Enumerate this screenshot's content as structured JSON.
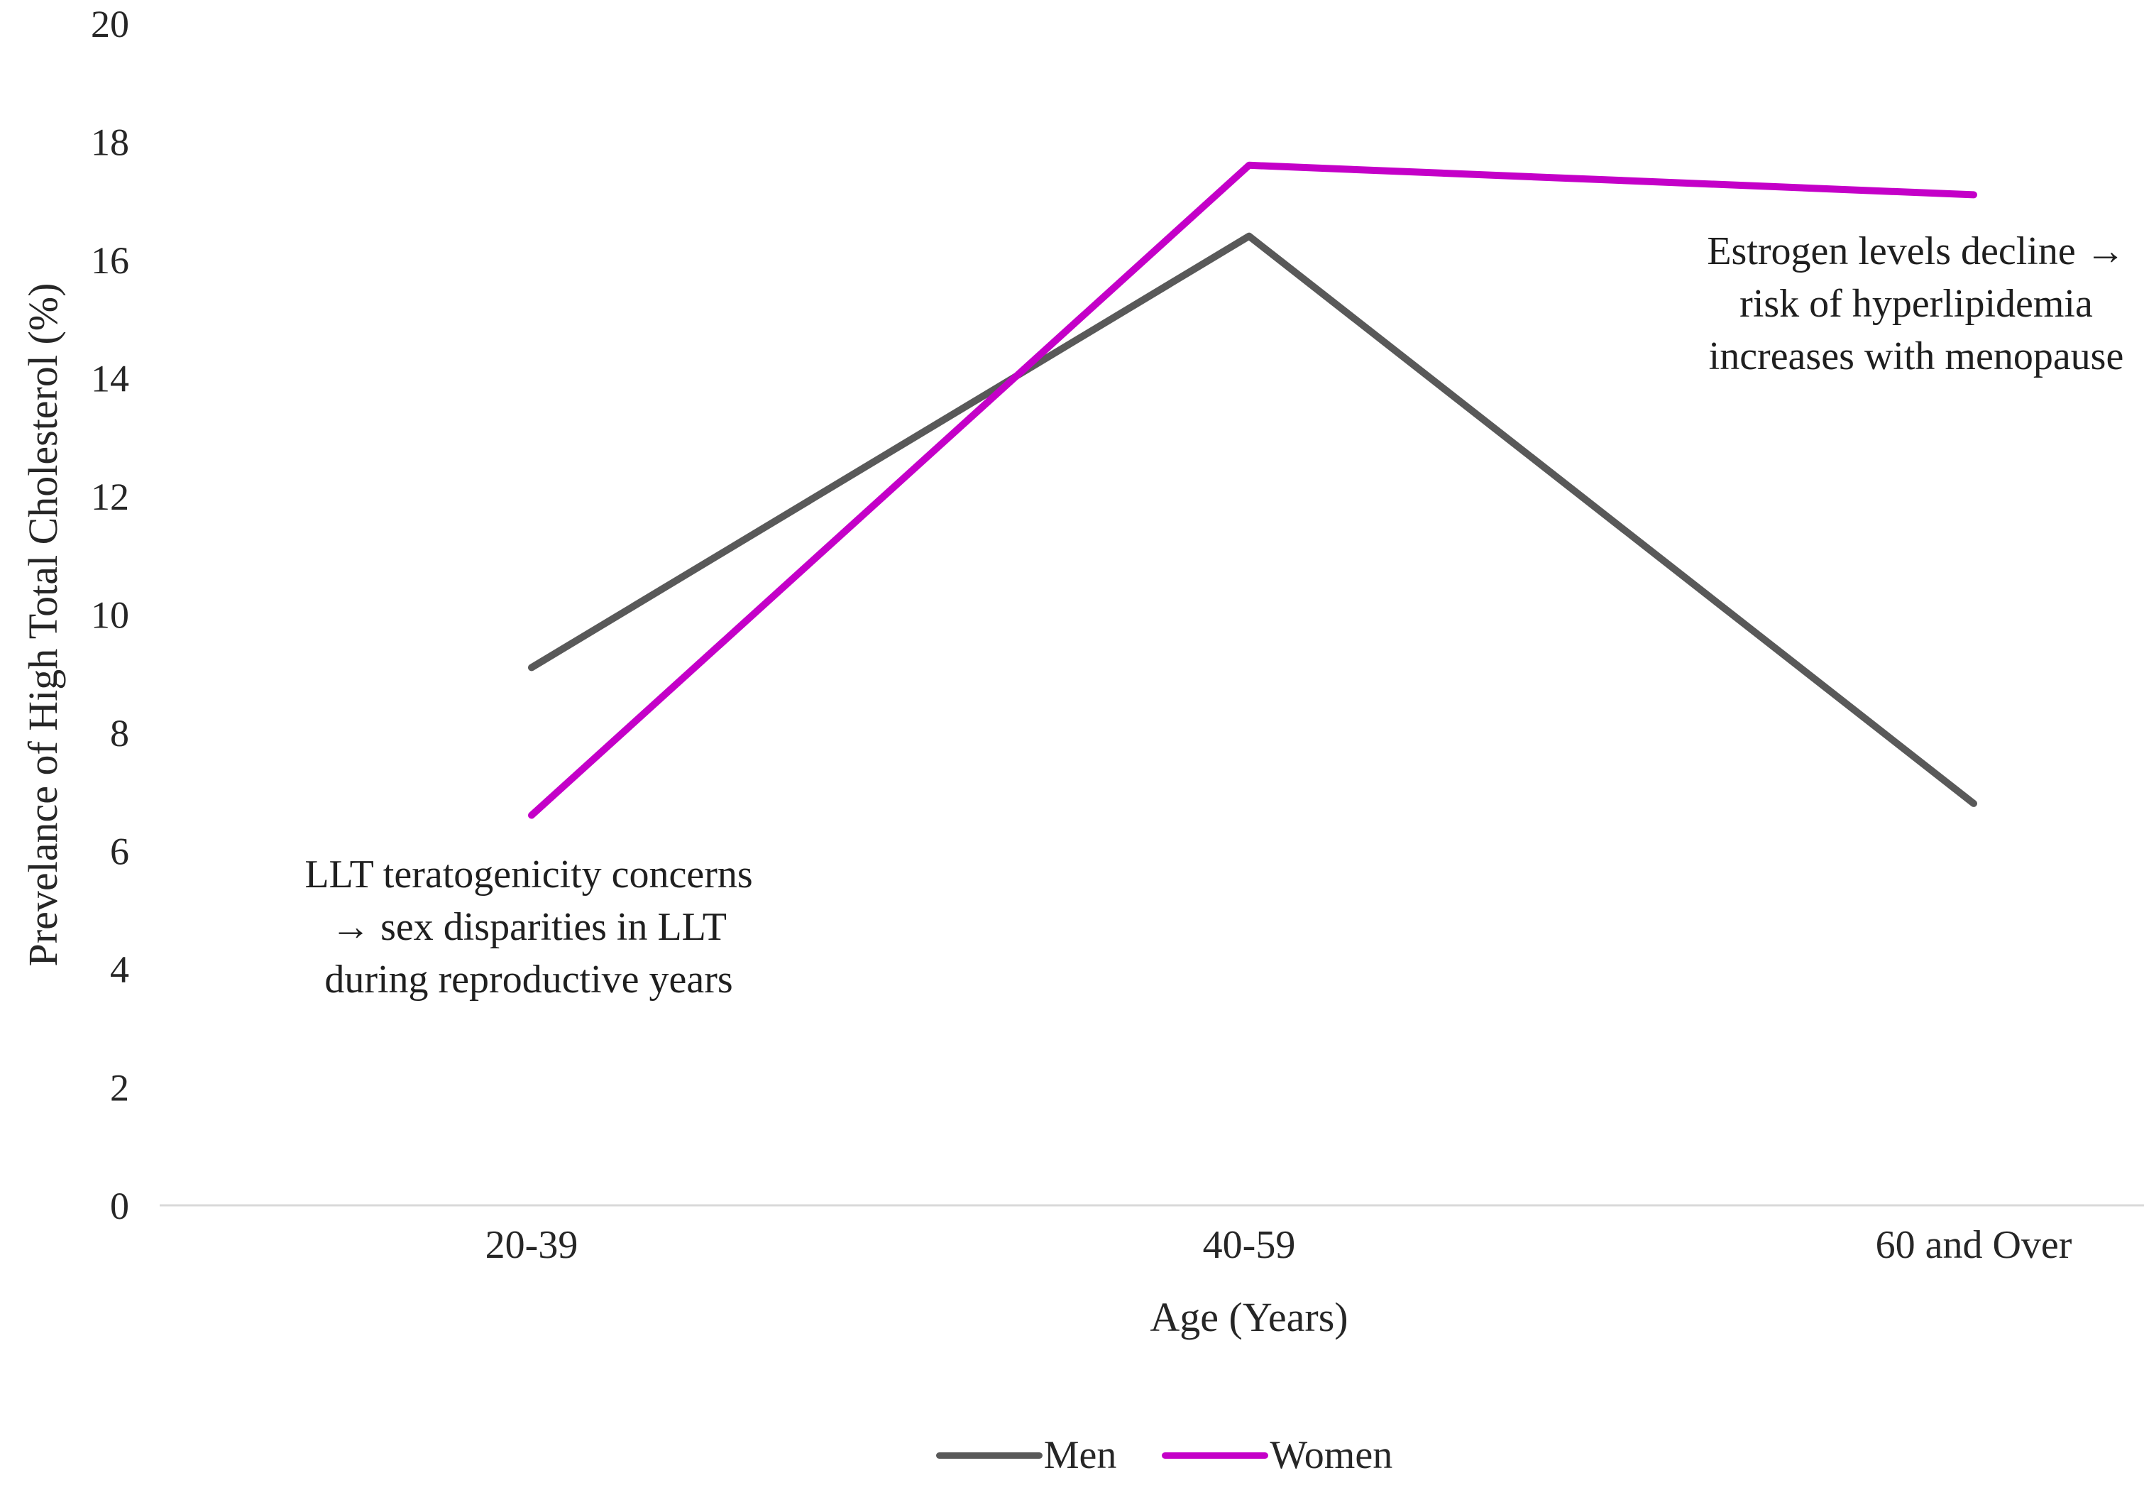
{
  "chart_data": {
    "type": "line",
    "categories": [
      "20-39",
      "40-59",
      "60 and Over"
    ],
    "series": [
      {
        "name": "Men",
        "color": "#595959",
        "values": [
          9.1,
          16.4,
          6.8
        ]
      },
      {
        "name": "Women",
        "color": "#C400C8",
        "values": [
          6.6,
          17.6,
          17.1
        ]
      }
    ],
    "title": "",
    "xlabel": "Age (Years)",
    "ylabel": "Prevelance of High Total Cholesterol (%)",
    "ylim": [
      0,
      20
    ],
    "y_ticks": [
      0,
      2,
      4,
      6,
      8,
      10,
      12,
      14,
      16,
      18,
      20
    ],
    "grid": "off",
    "legend_position": "bottom",
    "axis_line_color": "#D9D9D9",
    "tick_text_color": "#262626",
    "annotations": [
      {
        "text": "LLT teratogenicity concerns\n→ sex disparities in LLT\nduring reproductive years",
        "anchor_category": "20-39"
      },
      {
        "text": "Estrogen levels decline →\nrisk of hyperlipidemia\nincreases with menopause",
        "anchor_category": "60 and Over"
      }
    ]
  }
}
